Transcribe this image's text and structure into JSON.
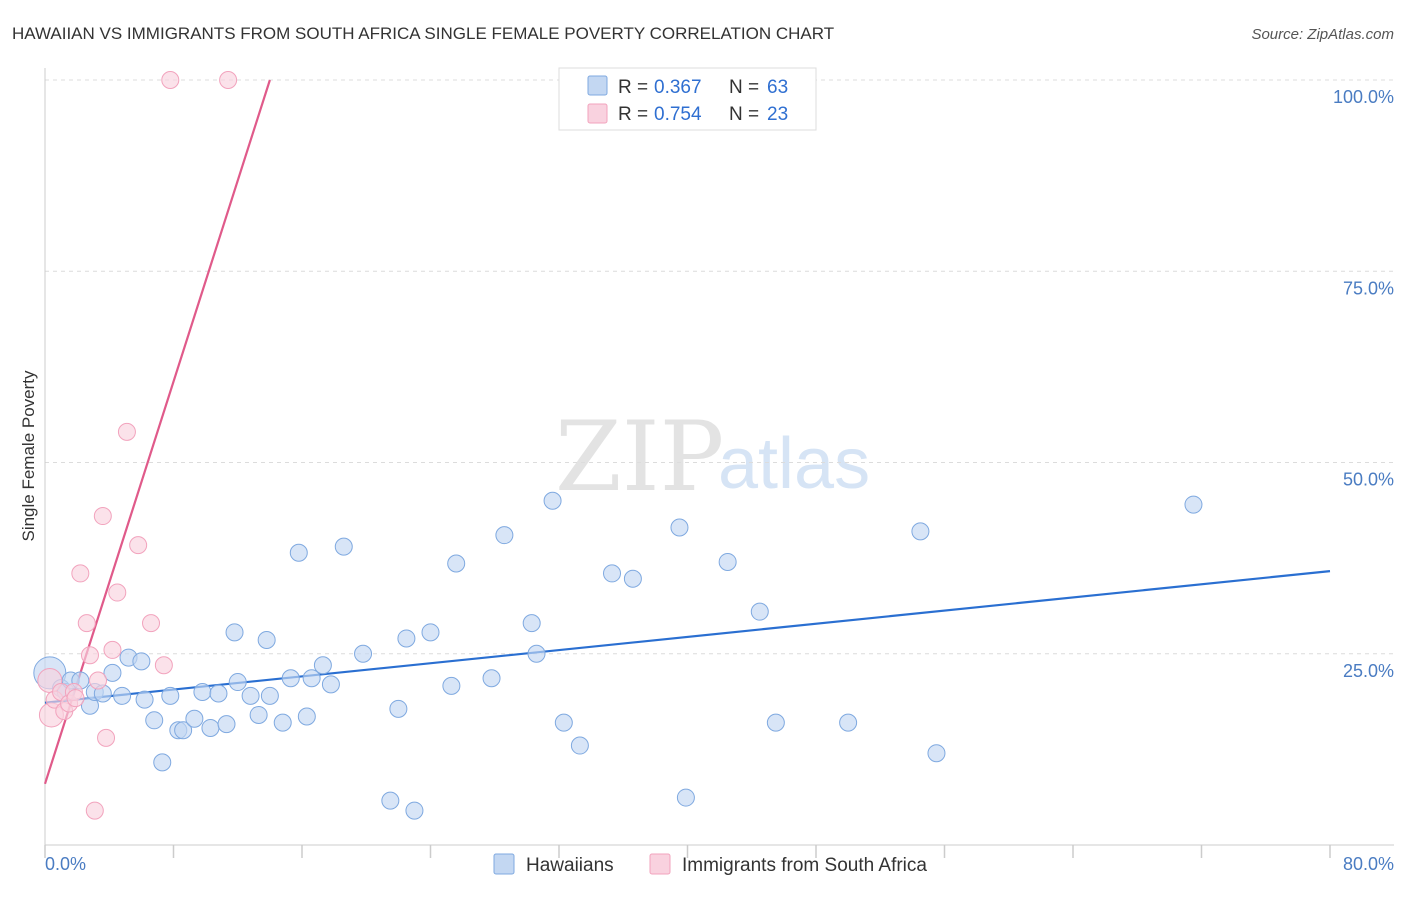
{
  "chart_data": {
    "type": "scatter",
    "title": "HAWAIIAN VS IMMIGRANTS FROM SOUTH AFRICA SINGLE FEMALE POVERTY CORRELATION CHART",
    "source": "Source: ZipAtlas.com",
    "xlabel": "",
    "ylabel": "Single Female Poverty",
    "xlim": [
      0,
      80
    ],
    "ylim": [
      0,
      100
    ],
    "x_tick_labels": {
      "left": "0.0%",
      "right": "80.0%"
    },
    "y_ticks": [
      {
        "value": 25,
        "label": "25.0%"
      },
      {
        "value": 50,
        "label": "50.0%"
      },
      {
        "value": 75,
        "label": "75.0%"
      },
      {
        "value": 100,
        "label": "100.0%"
      }
    ],
    "grid": true,
    "watermark": {
      "zip": "ZIP",
      "atlas": "atlas"
    },
    "legend_box": {
      "rows": [
        {
          "r_label": "R =",
          "r_value": "0.367",
          "n_label": "N =",
          "n_value": "63"
        },
        {
          "r_label": "R =",
          "r_value": "0.754",
          "n_label": "N =",
          "n_value": "23"
        }
      ]
    },
    "series": [
      {
        "name": "Hawaiians",
        "color": "#7fa9e0",
        "fill": "#c3d7f2",
        "line_color": "#2a6fd1",
        "trend": {
          "x": [
            0,
            80
          ],
          "y": [
            18.6,
            35.8
          ]
        },
        "points": [
          [
            0.3,
            22.5
          ],
          [
            1.0,
            20.5
          ],
          [
            1.3,
            20.0
          ],
          [
            1.6,
            21.5
          ],
          [
            2.2,
            21.5
          ],
          [
            2.8,
            18.2
          ],
          [
            3.1,
            20.0
          ],
          [
            3.6,
            19.8
          ],
          [
            4.2,
            22.5
          ],
          [
            4.8,
            19.5
          ],
          [
            5.2,
            24.5
          ],
          [
            6.0,
            24.0
          ],
          [
            6.2,
            19.0
          ],
          [
            6.8,
            16.3
          ],
          [
            7.3,
            10.8
          ],
          [
            7.8,
            19.5
          ],
          [
            8.3,
            15.0
          ],
          [
            8.6,
            15.0
          ],
          [
            9.3,
            16.5
          ],
          [
            9.8,
            20.0
          ],
          [
            10.3,
            15.3
          ],
          [
            10.8,
            19.8
          ],
          [
            11.3,
            15.8
          ],
          [
            11.8,
            27.8
          ],
          [
            12.0,
            21.3
          ],
          [
            12.8,
            19.5
          ],
          [
            13.3,
            17.0
          ],
          [
            13.8,
            26.8
          ],
          [
            14.0,
            19.5
          ],
          [
            14.8,
            16.0
          ],
          [
            15.3,
            21.8
          ],
          [
            15.8,
            38.2
          ],
          [
            16.3,
            16.8
          ],
          [
            16.6,
            21.8
          ],
          [
            17.3,
            23.5
          ],
          [
            17.8,
            21.0
          ],
          [
            18.6,
            39.0
          ],
          [
            19.8,
            25.0
          ],
          [
            21.5,
            5.8
          ],
          [
            22.0,
            17.8
          ],
          [
            22.5,
            27.0
          ],
          [
            23.0,
            4.5
          ],
          [
            24.0,
            27.8
          ],
          [
            25.3,
            20.8
          ],
          [
            25.6,
            36.8
          ],
          [
            27.8,
            21.8
          ],
          [
            28.6,
            40.5
          ],
          [
            30.3,
            29.0
          ],
          [
            30.6,
            25.0
          ],
          [
            31.6,
            45.0
          ],
          [
            32.3,
            16.0
          ],
          [
            33.3,
            13.0
          ],
          [
            35.3,
            35.5
          ],
          [
            36.6,
            34.8
          ],
          [
            39.5,
            41.5
          ],
          [
            39.9,
            6.2
          ],
          [
            42.5,
            37.0
          ],
          [
            44.5,
            30.5
          ],
          [
            45.5,
            16.0
          ],
          [
            50.0,
            16.0
          ],
          [
            54.5,
            41.0
          ],
          [
            55.5,
            12.0
          ],
          [
            71.5,
            44.5
          ]
        ]
      },
      {
        "name": "Immigrants from South Africa",
        "color": "#f2a3bd",
        "fill": "#f9d2df",
        "line_color": "#e05a8a",
        "trend": {
          "x": [
            0,
            14
          ],
          "y": [
            8.0,
            100.0
          ]
        },
        "points": [
          [
            0.3,
            21.5
          ],
          [
            0.4,
            17.0
          ],
          [
            0.6,
            19.0
          ],
          [
            1.0,
            20.0
          ],
          [
            1.2,
            17.5
          ],
          [
            1.5,
            18.5
          ],
          [
            1.8,
            20.0
          ],
          [
            2.2,
            35.5
          ],
          [
            2.6,
            29.0
          ],
          [
            2.8,
            24.8
          ],
          [
            3.1,
            4.5
          ],
          [
            3.3,
            21.5
          ],
          [
            3.6,
            43.0
          ],
          [
            3.8,
            14.0
          ],
          [
            4.2,
            25.5
          ],
          [
            4.5,
            33.0
          ],
          [
            5.1,
            54.0
          ],
          [
            5.8,
            39.2
          ],
          [
            6.6,
            29.0
          ],
          [
            7.4,
            23.5
          ],
          [
            7.8,
            100.0
          ],
          [
            11.4,
            100.0
          ],
          [
            1.9,
            19.2
          ]
        ]
      }
    ]
  }
}
